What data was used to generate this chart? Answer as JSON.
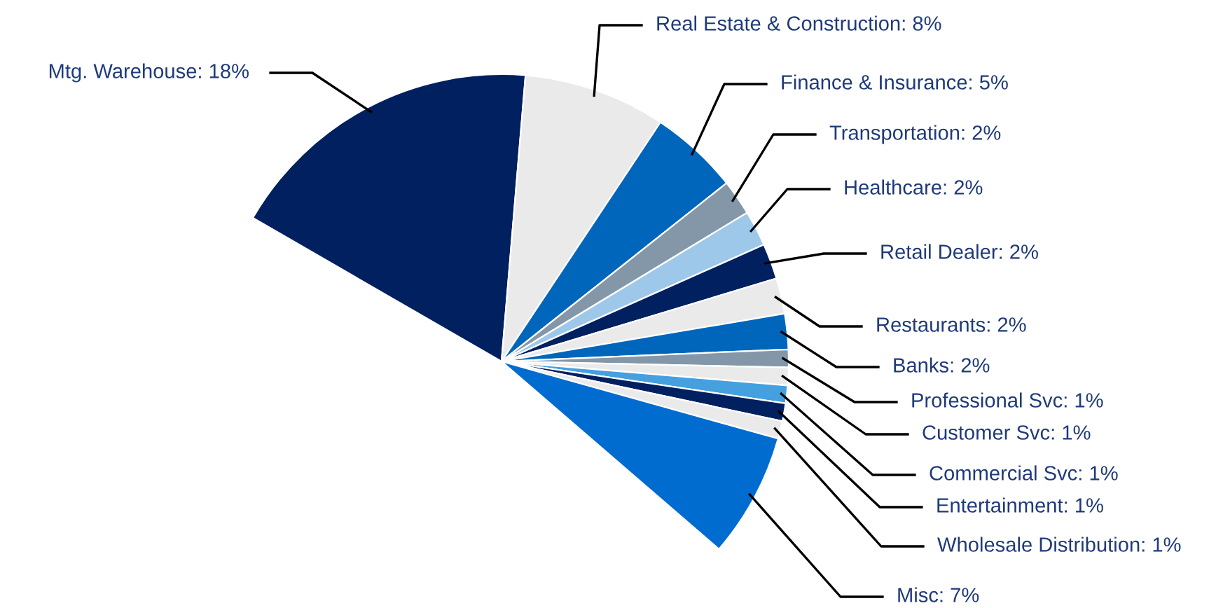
{
  "chart_data": {
    "type": "pie",
    "categories": [
      "Mtg. Warehouse",
      "Real Estate & Construction",
      "Finance & Insurance",
      "Transportation",
      "Healthcare",
      "Retail Dealer",
      "Restaurants",
      "Banks",
      "Professional Svc",
      "Customer Svc",
      "Commercial Svc",
      "Entertainment",
      "Wholesale Distribution",
      "Misc"
    ],
    "values": [
      18,
      8,
      5,
      2,
      2,
      2,
      2,
      2,
      1,
      1,
      1,
      1,
      1,
      7
    ],
    "value_labels": [
      "18%",
      "8%",
      "5%",
      "2%",
      "2%",
      "2%",
      "2%",
      "2%",
      "1%",
      "1%",
      "1%",
      "1%",
      "1%",
      "7%"
    ],
    "colors": [
      "#002060",
      "#eaeaea",
      "#0066bb",
      "#8497a8",
      "#9dc8ea",
      "#002060",
      "#eaeaea",
      "#0066bb",
      "#8497a8",
      "#eaeaea",
      "#45a0e0",
      "#002060",
      "#eaeaea",
      "#006ccf"
    ],
    "legend": false
  }
}
